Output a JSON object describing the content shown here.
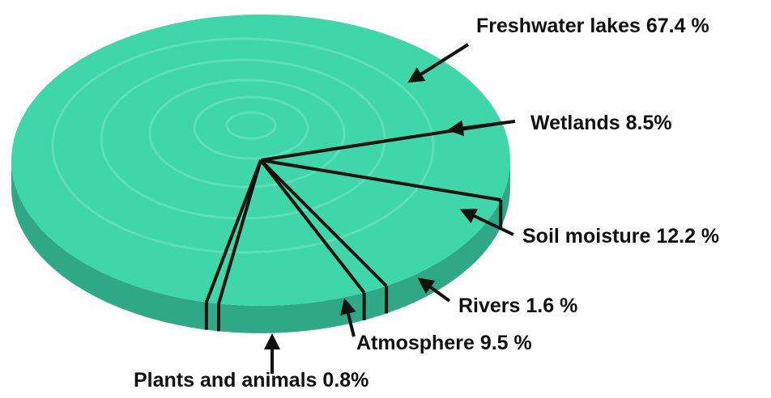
{
  "chart_data": {
    "type": "pie",
    "categories": [
      "Freshwater lakes",
      "Wetlands",
      "Soil moisture",
      "Rivers",
      "Atmosphere",
      "Plants and animals"
    ],
    "values": [
      67.4,
      8.5,
      12.2,
      1.6,
      9.5,
      0.8
    ],
    "value_labels": [
      "67.4 %",
      "8.5%",
      "12.2 %",
      "1.6 %",
      "9.5 %",
      "0.8%"
    ],
    "color": "#3fd6a9"
  }
}
